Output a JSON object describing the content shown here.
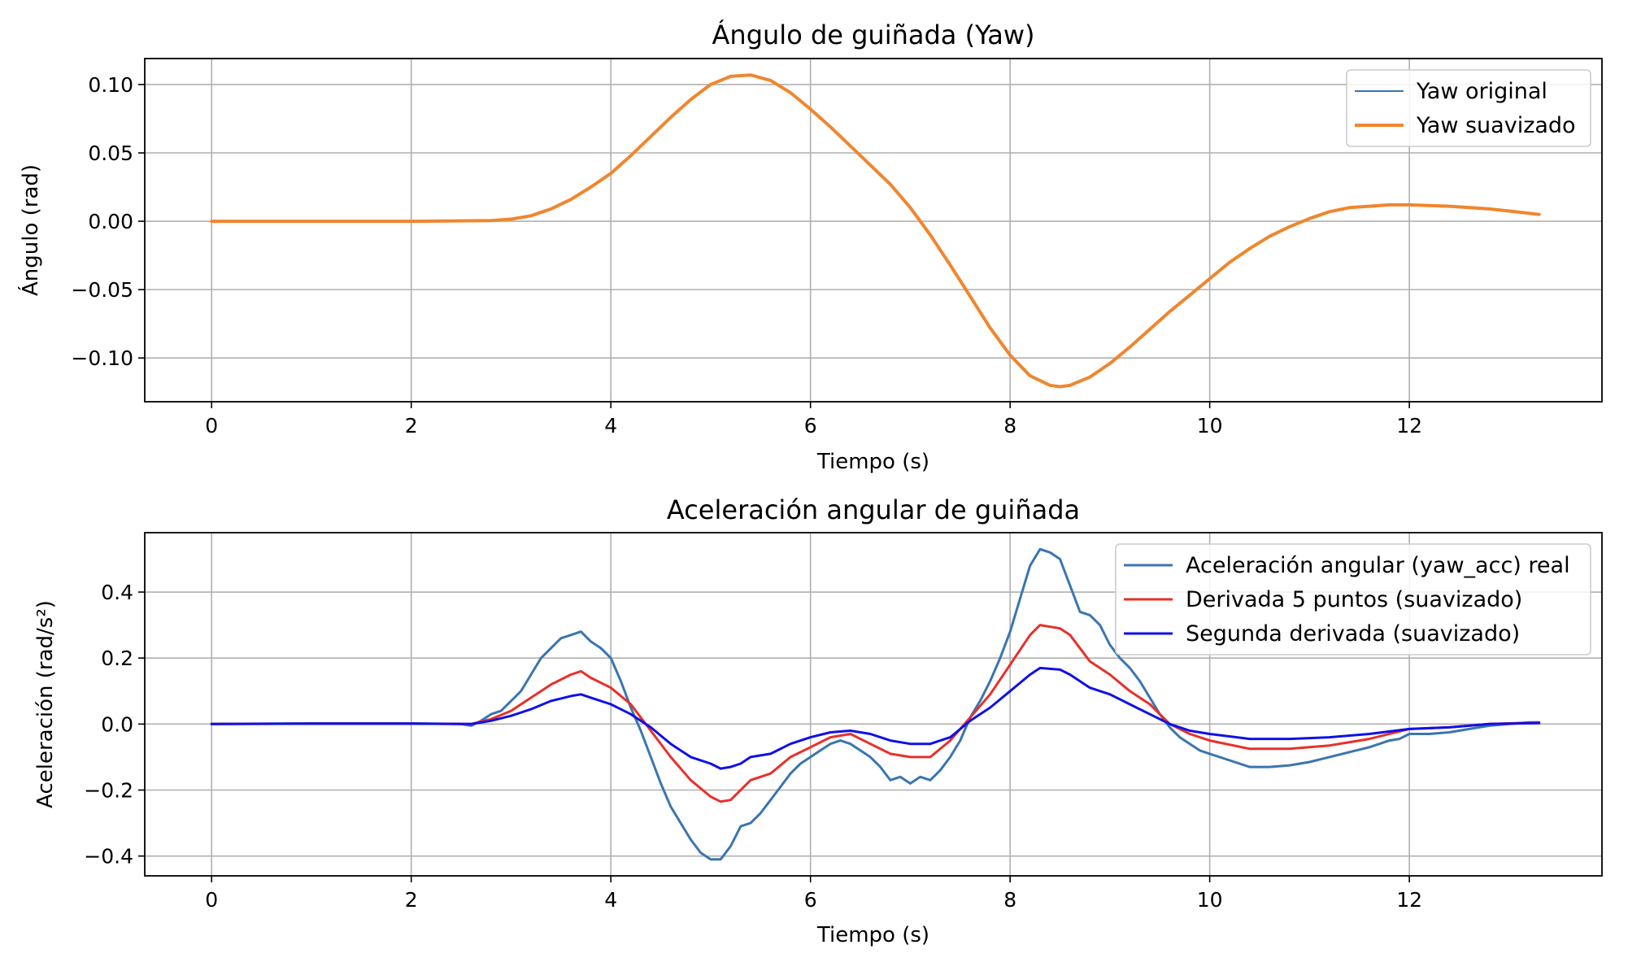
{
  "chart_data": [
    {
      "type": "line",
      "title": "Ángulo de guiñada (Yaw)",
      "xlabel": "Tiempo (s)",
      "ylabel": "Ángulo (rad)",
      "xlim": [
        -0.67,
        13.93
      ],
      "ylim": [
        -0.132,
        0.119
      ],
      "xticks": [
        0,
        2,
        4,
        6,
        8,
        10,
        12
      ],
      "xtick_labels": [
        "0",
        "2",
        "4",
        "6",
        "8",
        "10",
        "12"
      ],
      "yticks": [
        0.1,
        0.05,
        0.0,
        -0.05,
        -0.1
      ],
      "ytick_labels": [
        "0.10",
        "0.05",
        "0.00",
        "−0.05",
        "−0.10"
      ],
      "grid": true,
      "legend": "top-right",
      "series": [
        {
          "name": "Yaw original",
          "color": "#3b75af",
          "width": 2,
          "x": [
            0,
            1,
            2,
            2.8,
            3.0,
            3.2,
            3.4,
            3.6,
            3.8,
            4.0,
            4.2,
            4.4,
            4.6,
            4.8,
            5.0,
            5.2,
            5.4,
            5.6,
            5.8,
            6.0,
            6.2,
            6.4,
            6.6,
            6.8,
            7.0,
            7.2,
            7.4,
            7.6,
            7.8,
            8.0,
            8.2,
            8.4,
            8.5,
            8.6,
            8.8,
            9.0,
            9.2,
            9.4,
            9.6,
            9.8,
            10.0,
            10.2,
            10.4,
            10.6,
            10.8,
            11.0,
            11.2,
            11.4,
            11.6,
            11.8,
            12.0,
            12.2,
            12.4,
            12.6,
            12.8,
            13.0,
            13.3
          ],
          "y": [
            0,
            0,
            0,
            0.0005,
            0.0015,
            0.004,
            0.009,
            0.016,
            0.025,
            0.035,
            0.048,
            0.062,
            0.076,
            0.089,
            0.1,
            0.106,
            0.107,
            0.103,
            0.094,
            0.082,
            0.069,
            0.055,
            0.041,
            0.027,
            0.01,
            -0.01,
            -0.032,
            -0.055,
            -0.078,
            -0.098,
            -0.113,
            -0.12,
            -0.121,
            -0.12,
            -0.114,
            -0.104,
            -0.092,
            -0.079,
            -0.066,
            -0.054,
            -0.042,
            -0.03,
            -0.02,
            -0.011,
            -0.004,
            0.002,
            0.007,
            0.01,
            0.011,
            0.012,
            0.012,
            0.0115,
            0.011,
            0.01,
            0.009,
            0.0075,
            0.005
          ]
        },
        {
          "name": "Yaw suavizado",
          "color": "#f0862e",
          "width": 4,
          "x": [
            0,
            1,
            2,
            2.8,
            3.0,
            3.2,
            3.4,
            3.6,
            3.8,
            4.0,
            4.2,
            4.4,
            4.6,
            4.8,
            5.0,
            5.2,
            5.4,
            5.6,
            5.8,
            6.0,
            6.2,
            6.4,
            6.6,
            6.8,
            7.0,
            7.2,
            7.4,
            7.6,
            7.8,
            8.0,
            8.2,
            8.4,
            8.5,
            8.6,
            8.8,
            9.0,
            9.2,
            9.4,
            9.6,
            9.8,
            10.0,
            10.2,
            10.4,
            10.6,
            10.8,
            11.0,
            11.2,
            11.4,
            11.6,
            11.8,
            12.0,
            12.2,
            12.4,
            12.6,
            12.8,
            13.0,
            13.3
          ],
          "y": [
            0,
            0,
            0,
            0.0005,
            0.0015,
            0.004,
            0.009,
            0.016,
            0.025,
            0.035,
            0.048,
            0.062,
            0.076,
            0.089,
            0.1,
            0.106,
            0.107,
            0.103,
            0.094,
            0.082,
            0.069,
            0.055,
            0.041,
            0.027,
            0.01,
            -0.01,
            -0.032,
            -0.055,
            -0.078,
            -0.098,
            -0.113,
            -0.12,
            -0.121,
            -0.12,
            -0.114,
            -0.104,
            -0.092,
            -0.079,
            -0.066,
            -0.054,
            -0.042,
            -0.03,
            -0.02,
            -0.011,
            -0.004,
            0.002,
            0.007,
            0.01,
            0.011,
            0.012,
            0.012,
            0.0115,
            0.011,
            0.01,
            0.009,
            0.0075,
            0.005
          ]
        }
      ]
    },
    {
      "type": "line",
      "title": "Aceleración angular de guiñada",
      "xlabel": "Tiempo (s)",
      "ylabel": "Aceleración (rad/s²)",
      "xlim": [
        -0.67,
        13.93
      ],
      "ylim": [
        -0.46,
        0.58
      ],
      "xticks": [
        0,
        2,
        4,
        6,
        8,
        10,
        12
      ],
      "xtick_labels": [
        "0",
        "2",
        "4",
        "6",
        "8",
        "10",
        "12"
      ],
      "yticks": [
        0.4,
        0.2,
        0.0,
        -0.2,
        -0.4
      ],
      "ytick_labels": [
        "0.4",
        "0.2",
        "0.0",
        "−0.2",
        "−0.4"
      ],
      "grid": true,
      "legend": "top-right",
      "series": [
        {
          "name": "Aceleración angular (yaw_acc) real",
          "color": "#3b75af",
          "width": 3,
          "x": [
            0,
            1,
            2,
            2.5,
            2.6,
            2.7,
            2.8,
            2.9,
            3.0,
            3.1,
            3.2,
            3.3,
            3.4,
            3.5,
            3.6,
            3.7,
            3.8,
            3.9,
            4.0,
            4.1,
            4.2,
            4.3,
            4.4,
            4.5,
            4.6,
            4.7,
            4.8,
            4.9,
            5.0,
            5.1,
            5.2,
            5.3,
            5.4,
            5.5,
            5.6,
            5.7,
            5.8,
            5.9,
            6.0,
            6.1,
            6.2,
            6.3,
            6.4,
            6.5,
            6.6,
            6.7,
            6.8,
            6.9,
            7.0,
            7.1,
            7.2,
            7.3,
            7.4,
            7.5,
            7.6,
            7.7,
            7.8,
            7.9,
            8.0,
            8.1,
            8.2,
            8.3,
            8.4,
            8.5,
            8.6,
            8.7,
            8.8,
            8.9,
            9.0,
            9.1,
            9.2,
            9.3,
            9.4,
            9.5,
            9.6,
            9.7,
            9.8,
            9.9,
            10.0,
            10.2,
            10.4,
            10.6,
            10.8,
            11.0,
            11.2,
            11.4,
            11.6,
            11.8,
            11.9,
            12.0,
            12.2,
            12.4,
            12.6,
            12.8,
            13.0,
            13.2,
            13.3
          ],
          "y": [
            0,
            0.002,
            0.002,
            0.0,
            -0.005,
            0.01,
            0.03,
            0.04,
            0.07,
            0.1,
            0.15,
            0.2,
            0.23,
            0.26,
            0.27,
            0.28,
            0.25,
            0.23,
            0.2,
            0.13,
            0.05,
            -0.02,
            -0.1,
            -0.18,
            -0.25,
            -0.3,
            -0.35,
            -0.39,
            -0.41,
            -0.41,
            -0.37,
            -0.31,
            -0.3,
            -0.27,
            -0.23,
            -0.19,
            -0.15,
            -0.12,
            -0.1,
            -0.08,
            -0.06,
            -0.05,
            -0.06,
            -0.08,
            -0.1,
            -0.13,
            -0.17,
            -0.16,
            -0.18,
            -0.16,
            -0.17,
            -0.14,
            -0.1,
            -0.05,
            0.02,
            0.07,
            0.13,
            0.2,
            0.28,
            0.38,
            0.48,
            0.53,
            0.52,
            0.5,
            0.42,
            0.34,
            0.33,
            0.3,
            0.24,
            0.2,
            0.17,
            0.13,
            0.08,
            0.03,
            -0.01,
            -0.04,
            -0.06,
            -0.08,
            -0.09,
            -0.11,
            -0.13,
            -0.13,
            -0.125,
            -0.115,
            -0.1,
            -0.085,
            -0.07,
            -0.05,
            -0.045,
            -0.03,
            -0.03,
            -0.025,
            -0.015,
            -0.005,
            0.0,
            0.005,
            0.005
          ]
        },
        {
          "name": "Derivada 5 puntos (suavizado)",
          "color": "#e8302a",
          "width": 3,
          "x": [
            0,
            1,
            2,
            2.6,
            2.8,
            3.0,
            3.2,
            3.4,
            3.6,
            3.7,
            3.8,
            4.0,
            4.2,
            4.4,
            4.6,
            4.8,
            5.0,
            5.1,
            5.2,
            5.3,
            5.4,
            5.6,
            5.8,
            6.0,
            6.2,
            6.4,
            6.6,
            6.8,
            7.0,
            7.2,
            7.4,
            7.6,
            7.8,
            8.0,
            8.2,
            8.3,
            8.5,
            8.6,
            8.8,
            9.0,
            9.2,
            9.4,
            9.6,
            9.8,
            10.0,
            10.4,
            10.8,
            11.2,
            11.6,
            12.0,
            12.4,
            12.8,
            13.3
          ],
          "y": [
            0,
            0.001,
            0.001,
            0.0,
            0.015,
            0.04,
            0.08,
            0.12,
            0.15,
            0.16,
            0.14,
            0.11,
            0.06,
            -0.02,
            -0.1,
            -0.17,
            -0.22,
            -0.235,
            -0.23,
            -0.2,
            -0.17,
            -0.15,
            -0.1,
            -0.07,
            -0.04,
            -0.03,
            -0.06,
            -0.09,
            -0.1,
            -0.1,
            -0.05,
            0.02,
            0.09,
            0.18,
            0.27,
            0.3,
            0.29,
            0.27,
            0.19,
            0.15,
            0.1,
            0.06,
            0.0,
            -0.03,
            -0.05,
            -0.075,
            -0.075,
            -0.065,
            -0.045,
            -0.015,
            -0.01,
            0.0,
            0.005
          ]
        },
        {
          "name": "Segunda derivada (suavizado)",
          "color": "#1010e8",
          "width": 3,
          "x": [
            0,
            1,
            2,
            2.6,
            2.8,
            3.0,
            3.2,
            3.4,
            3.6,
            3.7,
            3.8,
            4.0,
            4.2,
            4.4,
            4.6,
            4.8,
            5.0,
            5.1,
            5.2,
            5.3,
            5.4,
            5.6,
            5.8,
            6.0,
            6.2,
            6.4,
            6.6,
            6.8,
            7.0,
            7.2,
            7.4,
            7.6,
            7.8,
            8.0,
            8.2,
            8.3,
            8.5,
            8.6,
            8.8,
            9.0,
            9.2,
            9.4,
            9.6,
            9.8,
            10.0,
            10.4,
            10.8,
            11.2,
            11.6,
            12.0,
            12.4,
            12.8,
            13.3
          ],
          "y": [
            0,
            0.001,
            0.001,
            0.0,
            0.01,
            0.025,
            0.045,
            0.07,
            0.085,
            0.09,
            0.08,
            0.06,
            0.03,
            -0.01,
            -0.06,
            -0.1,
            -0.12,
            -0.135,
            -0.13,
            -0.12,
            -0.1,
            -0.09,
            -0.06,
            -0.04,
            -0.025,
            -0.02,
            -0.03,
            -0.05,
            -0.06,
            -0.06,
            -0.04,
            0.01,
            0.05,
            0.1,
            0.15,
            0.17,
            0.165,
            0.15,
            0.11,
            0.09,
            0.06,
            0.03,
            0.0,
            -0.02,
            -0.03,
            -0.045,
            -0.045,
            -0.04,
            -0.03,
            -0.015,
            -0.01,
            0.0,
            0.003
          ]
        }
      ]
    }
  ]
}
